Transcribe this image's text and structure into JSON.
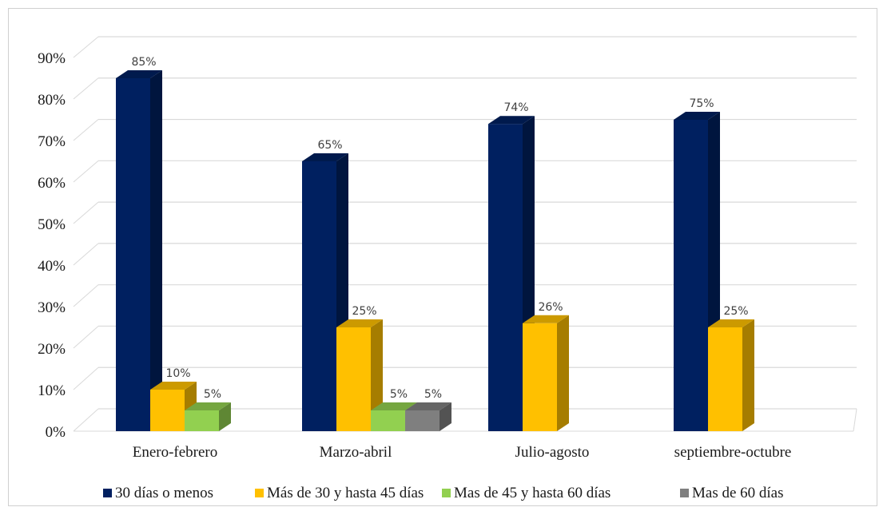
{
  "chart_data": {
    "type": "bar",
    "title": "",
    "xlabel": "",
    "ylabel": "",
    "ylim": [
      0,
      90
    ],
    "y_ticks": [
      "0%",
      "10%",
      "20%",
      "30%",
      "40%",
      "50%",
      "60%",
      "70%",
      "80%",
      "90%"
    ],
    "categories": [
      "Enero-febrero",
      "Marzo-abril",
      "Julio-agosto",
      "septiembre-octubre"
    ],
    "series": [
      {
        "name": "30 días o menos",
        "color": "#002060",
        "values": [
          85,
          65,
          74,
          75
        ],
        "labels": [
          "85%",
          "65%",
          "74%",
          "75%"
        ]
      },
      {
        "name": "Más de 30 y hasta 45 días",
        "color": "#FFC000",
        "values": [
          10,
          25,
          26,
          25
        ],
        "labels": [
          "10%",
          "25%",
          "26%",
          "25%"
        ]
      },
      {
        "name": "Mas de 45 y hasta 60 días",
        "color": "#92D050",
        "values": [
          5,
          5,
          null,
          null
        ],
        "labels": [
          "5%",
          "5%",
          null,
          null
        ]
      },
      {
        "name": "Mas de 60 días",
        "color": "#7F7F7F",
        "values": [
          null,
          5,
          null,
          null
        ],
        "labels": [
          null,
          "5%",
          null,
          null
        ]
      }
    ],
    "grid": true,
    "style": "3d-column",
    "legend_position": "bottom"
  }
}
